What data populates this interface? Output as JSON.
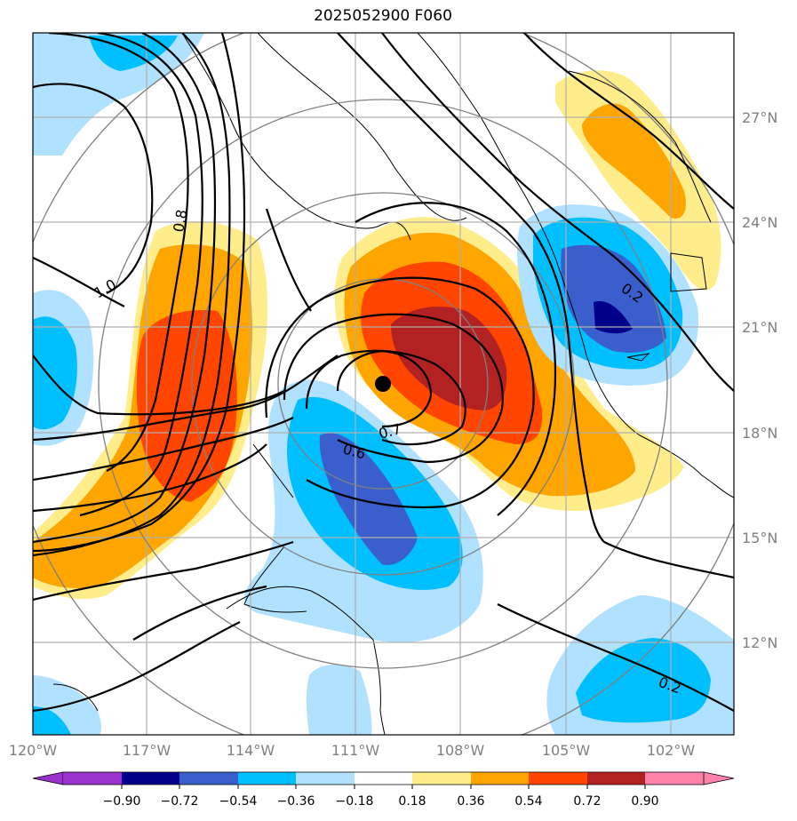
{
  "title": "2025052900 F060",
  "latitude_labels": [
    "27°N",
    "24°N",
    "21°N",
    "18°N",
    "15°N",
    "12°N"
  ],
  "longitude_labels": [
    "120°W",
    "117°W",
    "114°W",
    "111°W",
    "108°W",
    "105°W",
    "102°W"
  ],
  "contour_labels": [
    "0.8",
    "1.0",
    "0.7",
    "0.6",
    "0.2",
    "0.2"
  ],
  "colorbar": {
    "tick_labels": [
      "−0.90",
      "−0.72",
      "−0.54",
      "−0.36",
      "−0.18",
      "0.18",
      "0.36",
      "0.54",
      "0.72",
      "0.90"
    ],
    "colors": [
      "#9932CC",
      "#00008B",
      "#3A5FCD",
      "#00BFFF",
      "#B0E2FF",
      "#FFFFFF",
      "#FFEC8B",
      "#FFA500",
      "#FF4500",
      "#B22222",
      "#FF82AB"
    ]
  },
  "marker": "storm-center-dot",
  "colors": {
    "pos_1": "#FFEC8B",
    "pos_2": "#FFA500",
    "pos_3": "#FF4500",
    "pos_4": "#B22222",
    "neg_1": "#B0E2FF",
    "neg_2": "#00BFFF",
    "neg_3": "#3A5FCD",
    "neg_4": "#00008B"
  }
}
